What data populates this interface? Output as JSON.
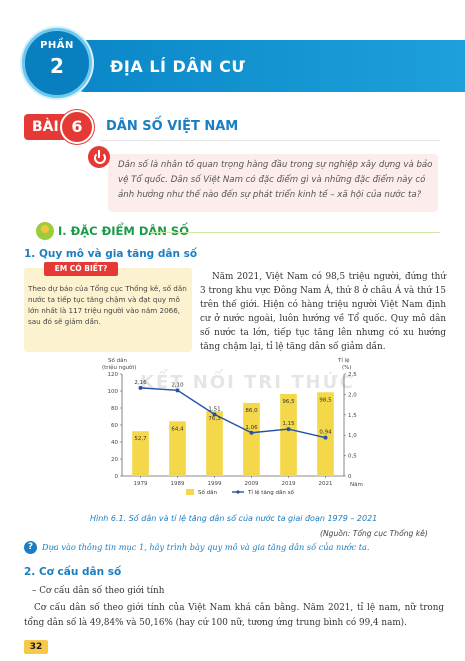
{
  "header": {
    "part_label": "PHẦN",
    "part_number": "2",
    "title": "ĐỊA LÍ DÂN CƯ"
  },
  "lesson": {
    "label": "BÀI",
    "number": "6",
    "title": "DÂN SỐ VIỆT NAM"
  },
  "intro": "Dân số là nhân tố quan trọng hàng đầu trong sự nghiệp xây dựng và bảo vệ Tổ quốc. Dân số Việt Nam có đặc điểm gì và những đặc điểm này có ảnh hưởng như thế nào đến sự phát triển kinh tế – xã hội của nước ta?",
  "section1": {
    "title": "I. ĐẶC ĐIỂM DÂN SỐ",
    "sub1_title": "1. Quy mô và gia tăng dân số",
    "know_label": "EM CÓ BIẾT?",
    "know_text": "Theo dự báo của Tổng cục Thống kê, số dân nước ta tiếp tục tăng chậm và đạt quy mô lớn nhất là 117 triệu người vào năm 2066, sau đó sẽ giảm dần.",
    "paragraph": "Năm 2021, Việt Nam có 98,5 triệu người, đứng thứ 3 trong khu vực Đông Nam Á, thứ 8 ở châu Á và thứ 15 trên thế giới. Hiện có hàng triệu người Việt Nam định cư ở nước ngoài, luôn hướng về Tổ quốc. Quy mô dân số nước ta lớn, tiếp tục tăng lên nhưng có xu hướng tăng chậm lại, tỉ lệ tăng dân số giảm dần."
  },
  "watermark": "KẾT NỐI TRI THỨC",
  "chart_data": {
    "type": "bar",
    "categories": [
      "1979",
      "1989",
      "1999",
      "2009",
      "2019",
      "2021"
    ],
    "series": [
      {
        "name": "Số dân",
        "type": "bar",
        "values": [
          52.7,
          64.4,
          76.3,
          86.0,
          96.5,
          98.5
        ],
        "labels": [
          "52,7",
          "64,4",
          "76,3",
          "86,0",
          "96,5",
          "98,5"
        ]
      },
      {
        "name": "Tỉ lệ tăng dân số",
        "type": "line",
        "values": [
          2.16,
          2.1,
          1.51,
          1.06,
          1.15,
          0.94
        ],
        "labels": [
          "2,16",
          "2,10",
          "1,51",
          "1,06",
          "1,15",
          "0,94"
        ]
      }
    ],
    "ylabel_left": "Số dân\n(triệu người)",
    "ylabel_right": "Tỉ lệ\n(%)",
    "xlabel": "Năm",
    "ylim_left": [
      0,
      120
    ],
    "ylim_right": [
      0,
      2.5
    ],
    "yticks_left": [
      "0",
      "20",
      "40",
      "60",
      "80",
      "100",
      "120"
    ],
    "yticks_right": [
      "0",
      "0,5",
      "1,0",
      "1,5",
      "2,0",
      "2,5"
    ],
    "legend": [
      "Số dân",
      "Tỉ lệ tăng dân số"
    ],
    "legend_position": "bottom",
    "colors": {
      "bar": "#f5d84a",
      "line": "#2452a4"
    }
  },
  "figure": {
    "caption": "Hình 6.1. Số dân và tỉ lệ tăng dân số của nước ta giai đoạn 1979 – 2021",
    "source": "(Nguồn: Tổng cục Thống kê)"
  },
  "question": {
    "icon": "?",
    "text": "Dựa vào thông tin mục 1, hãy trình bày quy mô và gia tăng dân số của nước ta."
  },
  "section2": {
    "title": "2. Cơ cấu dân số",
    "item": "– Cơ cấu dân số theo giới tính",
    "paragraph": "Cơ cấu dân số theo giới tính của Việt Nam khá cân bằng. Năm 2021, tỉ lệ nam, nữ trong tổng dân số là 49,84% và 50,16% (hay cứ 100 nữ, tương ứng trung bình có 99,4 nam)."
  },
  "page_number": "32"
}
